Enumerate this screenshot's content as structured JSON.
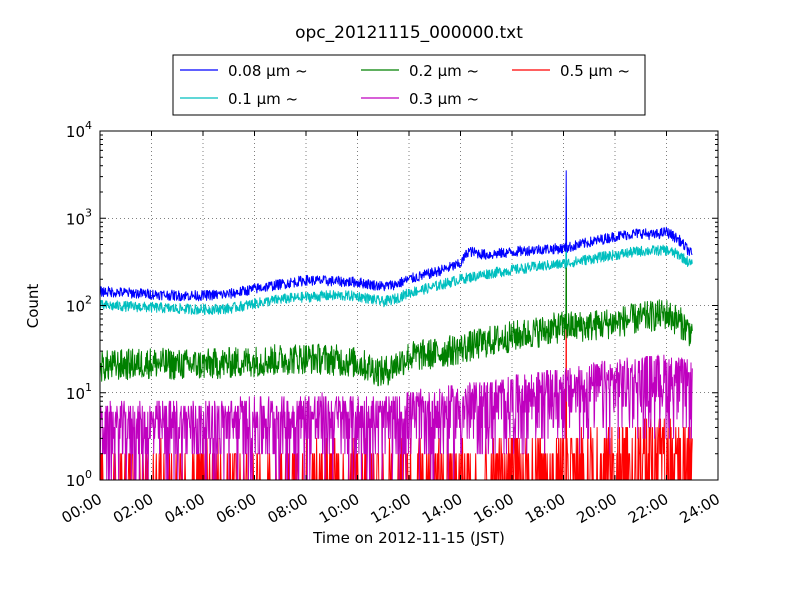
{
  "chart_data": {
    "type": "line",
    "title": "opc_20121115_000000.txt",
    "xlabel": "Time on 2012-11-15 (JST)",
    "ylabel": "Count",
    "x_unit": "hour of day (JST)",
    "xlim": [
      0,
      24
    ],
    "ylim": [
      1,
      10000
    ],
    "yscale": "log",
    "grid": true,
    "legend_position": "top-center",
    "x_ticks": [
      {
        "value": 0,
        "label": "00:00"
      },
      {
        "value": 2,
        "label": "02:00"
      },
      {
        "value": 4,
        "label": "04:00"
      },
      {
        "value": 6,
        "label": "06:00"
      },
      {
        "value": 8,
        "label": "08:00"
      },
      {
        "value": 10,
        "label": "10:00"
      },
      {
        "value": 12,
        "label": "12:00"
      },
      {
        "value": 14,
        "label": "14:00"
      },
      {
        "value": 16,
        "label": "16:00"
      },
      {
        "value": 18,
        "label": "18:00"
      },
      {
        "value": 20,
        "label": "20:00"
      },
      {
        "value": 22,
        "label": "22:00"
      },
      {
        "value": 24,
        "label": "24:00"
      }
    ],
    "y_ticks": [
      {
        "value": 1,
        "base": "10",
        "exp": "0"
      },
      {
        "value": 10,
        "base": "10",
        "exp": "1"
      },
      {
        "value": 100,
        "base": "10",
        "exp": "2"
      },
      {
        "value": 1000,
        "base": "10",
        "exp": "3"
      },
      {
        "value": 10000,
        "base": "10",
        "exp": "4"
      }
    ],
    "series": [
      {
        "name": "0.08 μm ~",
        "color": "#0000ff",
        "x": [
          0,
          1,
          2,
          3,
          4,
          5,
          6,
          7,
          8,
          9,
          10,
          11,
          11.5,
          12,
          13,
          14,
          14.3,
          15,
          16,
          17,
          18,
          19,
          20,
          21,
          21.5,
          22,
          22.5,
          23
        ],
        "y": [
          145,
          140,
          135,
          130,
          130,
          135,
          155,
          175,
          195,
          190,
          185,
          165,
          175,
          200,
          240,
          300,
          420,
          380,
          410,
          440,
          450,
          530,
          620,
          680,
          640,
          700,
          560,
          380
        ]
      },
      {
        "name": "0.1 μm ~",
        "color": "#00bfbf",
        "x": [
          0,
          1,
          2,
          3,
          4,
          5,
          6,
          7,
          8,
          9,
          10,
          11,
          11.5,
          12,
          13,
          14,
          15,
          16,
          17,
          18,
          19,
          20,
          21,
          22,
          22.5,
          23
        ],
        "y": [
          100,
          98,
          95,
          92,
          90,
          92,
          105,
          118,
          125,
          130,
          128,
          110,
          120,
          140,
          165,
          200,
          230,
          255,
          280,
          300,
          340,
          380,
          420,
          430,
          380,
          290
        ]
      },
      {
        "name": "0.2 μm ~",
        "color": "#008000",
        "x": [
          0,
          1,
          2,
          3,
          4,
          5,
          6,
          7,
          8,
          9,
          10,
          11,
          12,
          13,
          14,
          15,
          16,
          17,
          18,
          19,
          20,
          21,
          22,
          22.5,
          23
        ],
        "y": [
          20,
          21,
          22,
          21,
          21,
          22,
          23,
          24,
          25,
          24,
          22,
          17,
          26,
          28,
          32,
          38,
          44,
          50,
          57,
          58,
          64,
          72,
          80,
          65,
          48
        ]
      },
      {
        "name": "0.3 μm ~",
        "color": "#bf00bf",
        "x": [
          0,
          1,
          2,
          3,
          4,
          5,
          6,
          7,
          8,
          9,
          10,
          11,
          12,
          13,
          14,
          15,
          16,
          17,
          18,
          19,
          20,
          21,
          22,
          23
        ],
        "y": [
          3,
          3,
          3,
          3.2,
          3.2,
          3.4,
          3.5,
          3.6,
          3.8,
          3.8,
          3.7,
          3.5,
          4,
          4.3,
          4.8,
          5.5,
          6.2,
          7,
          7.5,
          8.5,
          9.5,
          10.5,
          11,
          9
        ]
      },
      {
        "name": "0.5 μm ~",
        "color": "#ff0000",
        "x": [
          0,
          4,
          8,
          12,
          16,
          18,
          20,
          22,
          23
        ],
        "y": [
          1,
          1,
          1,
          1,
          1.2,
          1.3,
          1.6,
          1.9,
          1.4
        ]
      }
    ],
    "annotations": [
      {
        "description": "spike in 0.08 μm, 0.1 μm, 0.2 μm and 0.5 μm ~ channels",
        "x": 18.1,
        "y": 3500
      }
    ]
  }
}
